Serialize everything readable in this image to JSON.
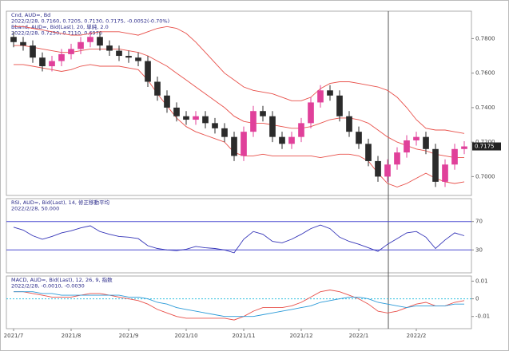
{
  "chart_data": [
    {
      "type": "candlestick",
      "info": [
        "Cnd, AUD=, Bd",
        "2022/2/28, 0.7160, 0.7205, 0.7130, 0.7175, -0.0052(-0.70%)",
        "Bband, AUD=, Bid(Last), 20, 単純, 2.0",
        "2022/2/28, 0.7250, 0.7110, 0.6970"
      ],
      "categories": [
        "2021/7",
        null,
        null,
        null,
        null,
        null,
        "2021/8",
        null,
        null,
        null,
        null,
        null,
        "2021/9",
        null,
        null,
        null,
        null,
        null,
        "2021/10",
        null,
        null,
        null,
        null,
        null,
        "2021/11",
        null,
        null,
        null,
        null,
        null,
        "2021/12",
        null,
        null,
        null,
        null,
        null,
        "2022/1",
        null,
        null,
        null,
        null,
        null,
        "2022/2",
        null,
        null,
        null,
        null,
        null
      ],
      "open": [
        0.781,
        0.778,
        0.776,
        0.769,
        0.764,
        0.767,
        0.771,
        0.774,
        0.778,
        0.781,
        0.776,
        0.773,
        0.77,
        0.769,
        0.767,
        0.755,
        0.747,
        0.74,
        0.735,
        0.733,
        0.735,
        0.731,
        0.728,
        0.723,
        0.712,
        0.726,
        0.738,
        0.735,
        0.723,
        0.719,
        0.723,
        0.731,
        0.743,
        0.75,
        0.747,
        0.735,
        0.726,
        0.719,
        0.709,
        0.7,
        0.707,
        0.714,
        0.721,
        0.723,
        0.716,
        0.697,
        0.707,
        0.716
      ],
      "high": [
        0.784,
        0.781,
        0.779,
        0.772,
        0.77,
        0.774,
        0.777,
        0.781,
        0.784,
        0.784,
        0.779,
        0.776,
        0.773,
        0.772,
        0.77,
        0.758,
        0.75,
        0.743,
        0.738,
        0.738,
        0.738,
        0.734,
        0.731,
        0.726,
        0.729,
        0.741,
        0.741,
        0.738,
        0.726,
        0.726,
        0.734,
        0.746,
        0.753,
        0.753,
        0.75,
        0.738,
        0.729,
        0.722,
        0.712,
        0.71,
        0.717,
        0.724,
        0.726,
        0.726,
        0.719,
        0.71,
        0.719,
        0.7205
      ],
      "low": [
        0.775,
        0.773,
        0.766,
        0.761,
        0.761,
        0.764,
        0.768,
        0.771,
        0.775,
        0.773,
        0.77,
        0.767,
        0.766,
        0.764,
        0.752,
        0.744,
        0.737,
        0.732,
        0.73,
        0.73,
        0.728,
        0.725,
        0.72,
        0.709,
        0.709,
        0.723,
        0.732,
        0.72,
        0.716,
        0.716,
        0.72,
        0.728,
        0.74,
        0.744,
        0.732,
        0.723,
        0.716,
        0.706,
        0.697,
        0.697,
        0.704,
        0.711,
        0.718,
        0.713,
        0.694,
        0.694,
        0.704,
        0.713
      ],
      "close": [
        0.778,
        0.776,
        0.769,
        0.764,
        0.767,
        0.771,
        0.774,
        0.778,
        0.781,
        0.776,
        0.773,
        0.77,
        0.769,
        0.767,
        0.755,
        0.747,
        0.74,
        0.735,
        0.733,
        0.735,
        0.731,
        0.728,
        0.723,
        0.712,
        0.726,
        0.738,
        0.735,
        0.723,
        0.719,
        0.723,
        0.731,
        0.743,
        0.75,
        0.747,
        0.735,
        0.726,
        0.719,
        0.709,
        0.7,
        0.707,
        0.714,
        0.721,
        0.723,
        0.716,
        0.697,
        0.707,
        0.716,
        0.7175
      ],
      "last_label": "0.7175",
      "up_color": "#e0409a",
      "down_color": "#2b2b2b",
      "series": [
        {
          "color": "#e8504a",
          "values": [
            0.787,
            0.787,
            0.786,
            0.785,
            0.784,
            0.783,
            0.782,
            0.782,
            0.783,
            0.784,
            0.784,
            0.784,
            0.783,
            0.782,
            0.784,
            0.786,
            0.787,
            0.786,
            0.783,
            0.778,
            0.772,
            0.766,
            0.76,
            0.756,
            0.752,
            0.75,
            0.749,
            0.748,
            0.746,
            0.744,
            0.744,
            0.746,
            0.751,
            0.754,
            0.755,
            0.755,
            0.754,
            0.753,
            0.752,
            0.75,
            0.746,
            0.74,
            0.733,
            0.728,
            0.727,
            0.727,
            0.726,
            0.725
          ]
        },
        {
          "color": "#e8504a",
          "values": [
            0.776,
            0.776,
            0.775,
            0.774,
            0.773,
            0.772,
            0.772,
            0.773,
            0.774,
            0.774,
            0.774,
            0.774,
            0.773,
            0.772,
            0.77,
            0.767,
            0.764,
            0.76,
            0.756,
            0.752,
            0.748,
            0.744,
            0.74,
            0.735,
            0.732,
            0.731,
            0.731,
            0.73,
            0.729,
            0.728,
            0.728,
            0.729,
            0.731,
            0.733,
            0.734,
            0.734,
            0.733,
            0.731,
            0.727,
            0.723,
            0.72,
            0.718,
            0.716,
            0.715,
            0.713,
            0.712,
            0.711,
            0.711
          ]
        },
        {
          "color": "#e8504a",
          "values": [
            0.765,
            0.765,
            0.764,
            0.763,
            0.762,
            0.761,
            0.762,
            0.764,
            0.765,
            0.764,
            0.764,
            0.764,
            0.763,
            0.762,
            0.756,
            0.748,
            0.741,
            0.734,
            0.729,
            0.726,
            0.724,
            0.722,
            0.72,
            0.714,
            0.712,
            0.712,
            0.713,
            0.712,
            0.712,
            0.712,
            0.712,
            0.712,
            0.711,
            0.712,
            0.713,
            0.713,
            0.712,
            0.709,
            0.702,
            0.696,
            0.694,
            0.696,
            0.699,
            0.702,
            0.699,
            0.697,
            0.696,
            0.697
          ]
        }
      ],
      "ylim": [
        0.69,
        0.795
      ],
      "yticks": [
        {
          "value": 0.7,
          "label": "0.7000"
        },
        {
          "value": 0.72,
          "label": "0.7200"
        },
        {
          "value": 0.74,
          "label": "0.7400"
        },
        {
          "value": 0.76,
          "label": "0.7600"
        },
        {
          "value": 0.78,
          "label": "0.7800"
        }
      ]
    },
    {
      "type": "line",
      "info": [
        "RSI, AUD=, Bid(Last), 14, 修正移動平均",
        "2022/2/28, 50.000"
      ],
      "levels": [
        70,
        30
      ],
      "level_color": "#4a4ad0",
      "series": [
        {
          "color": "#3434b8",
          "values": [
            62,
            58,
            50,
            45,
            49,
            54,
            57,
            61,
            64,
            56,
            52,
            49,
            48,
            46,
            36,
            32,
            30,
            29,
            31,
            35,
            33,
            32,
            30,
            26,
            45,
            56,
            52,
            42,
            40,
            45,
            52,
            60,
            65,
            60,
            48,
            42,
            38,
            33,
            28,
            38,
            46,
            54,
            56,
            48,
            32,
            44,
            54,
            50
          ]
        }
      ],
      "ylim": [
        0,
        100
      ],
      "yticks": [
        30,
        70
      ]
    },
    {
      "type": "line",
      "info": [
        "MACD, AUD=, Bid(Last), 12, 26, 9, 指数",
        "2022/2/28, -0.0010, -0.0030"
      ],
      "levels": [
        0
      ],
      "level_color": "#30c0e0",
      "series": [
        {
          "color": "#e8504a",
          "values": [
            0.004,
            0.004,
            0.003,
            0.002,
            0.001,
            0.001,
            0.001,
            0.002,
            0.003,
            0.003,
            0.002,
            0.001,
            0.0,
            -0.001,
            -0.003,
            -0.006,
            -0.008,
            -0.01,
            -0.011,
            -0.011,
            -0.011,
            -0.011,
            -0.011,
            -0.012,
            -0.01,
            -0.007,
            -0.005,
            -0.005,
            -0.005,
            -0.004,
            -0.002,
            0.001,
            0.004,
            0.005,
            0.004,
            0.002,
            0.0,
            -0.003,
            -0.007,
            -0.008,
            -0.007,
            -0.005,
            -0.003,
            -0.002,
            -0.004,
            -0.004,
            -0.002,
            -0.001
          ]
        },
        {
          "color": "#2a9ad8",
          "values": [
            0.004,
            0.004,
            0.004,
            0.003,
            0.003,
            0.002,
            0.002,
            0.002,
            0.002,
            0.002,
            0.002,
            0.002,
            0.001,
            0.001,
            0.0,
            -0.002,
            -0.003,
            -0.005,
            -0.006,
            -0.007,
            -0.008,
            -0.009,
            -0.01,
            -0.01,
            -0.01,
            -0.01,
            -0.009,
            -0.008,
            -0.007,
            -0.006,
            -0.005,
            -0.004,
            -0.002,
            -0.001,
            0.0,
            0.001,
            0.001,
            0.0,
            -0.002,
            -0.003,
            -0.004,
            -0.005,
            -0.004,
            -0.004,
            -0.004,
            -0.004,
            -0.003,
            -0.003
          ]
        }
      ],
      "ylim": [
        -0.016,
        0.012
      ],
      "yticks": [
        -0.01,
        0,
        0.01
      ]
    }
  ]
}
